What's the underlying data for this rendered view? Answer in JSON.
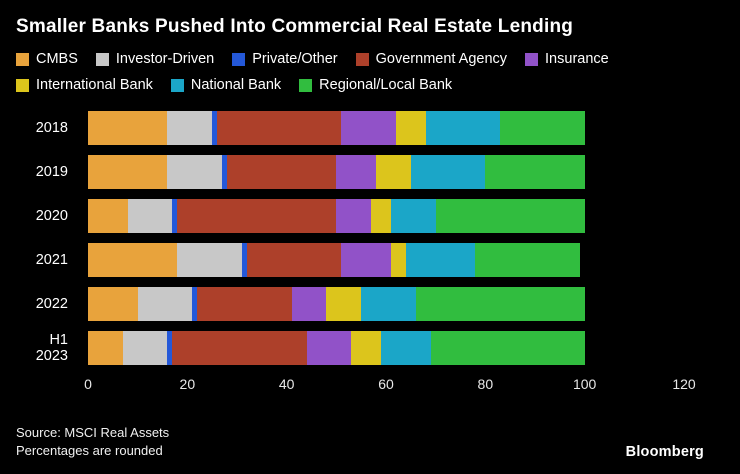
{
  "title": "Smaller Banks Pushed Into Commercial Real Estate Lending",
  "footer": {
    "source_line1": "Source: MSCI Real Assets",
    "source_line2": "Percentages are rounded",
    "brand": "Bloomberg"
  },
  "chart_data": {
    "type": "bar",
    "stacked": true,
    "orientation": "horizontal",
    "title": "Smaller Banks Pushed Into Commercial Real Estate Lending",
    "xlabel": "",
    "ylabel": "",
    "xlim": [
      0,
      120
    ],
    "xticks": [
      0,
      20,
      40,
      60,
      80,
      100,
      120
    ],
    "grid": false,
    "legend_position": "top",
    "categories": [
      "2018",
      "2019",
      "2020",
      "2021",
      "2022",
      "H1 2023"
    ],
    "series": [
      {
        "name": "CMBS",
        "color": "#e8a33c",
        "values": [
          16,
          16,
          8,
          18,
          10,
          7
        ]
      },
      {
        "name": "Investor-Driven",
        "color": "#c8c8c8",
        "values": [
          9,
          11,
          9,
          13,
          11,
          9
        ]
      },
      {
        "name": "Private/Other",
        "color": "#2458d8",
        "values": [
          1,
          1,
          1,
          1,
          1,
          1
        ]
      },
      {
        "name": "Government Agency",
        "color": "#ad402a",
        "values": [
          25,
          22,
          32,
          19,
          19,
          27
        ]
      },
      {
        "name": "Insurance",
        "color": "#9152c8",
        "values": [
          11,
          8,
          7,
          10,
          7,
          9
        ]
      },
      {
        "name": "International Bank",
        "color": "#dcc51c",
        "values": [
          6,
          7,
          4,
          3,
          7,
          6
        ]
      },
      {
        "name": "National Bank",
        "color": "#1ba6c8",
        "values": [
          15,
          15,
          9,
          14,
          11,
          10
        ]
      },
      {
        "name": "Regional/Local Bank",
        "color": "#31bd3f",
        "values": [
          17,
          20,
          30,
          21,
          34,
          31
        ]
      }
    ]
  }
}
